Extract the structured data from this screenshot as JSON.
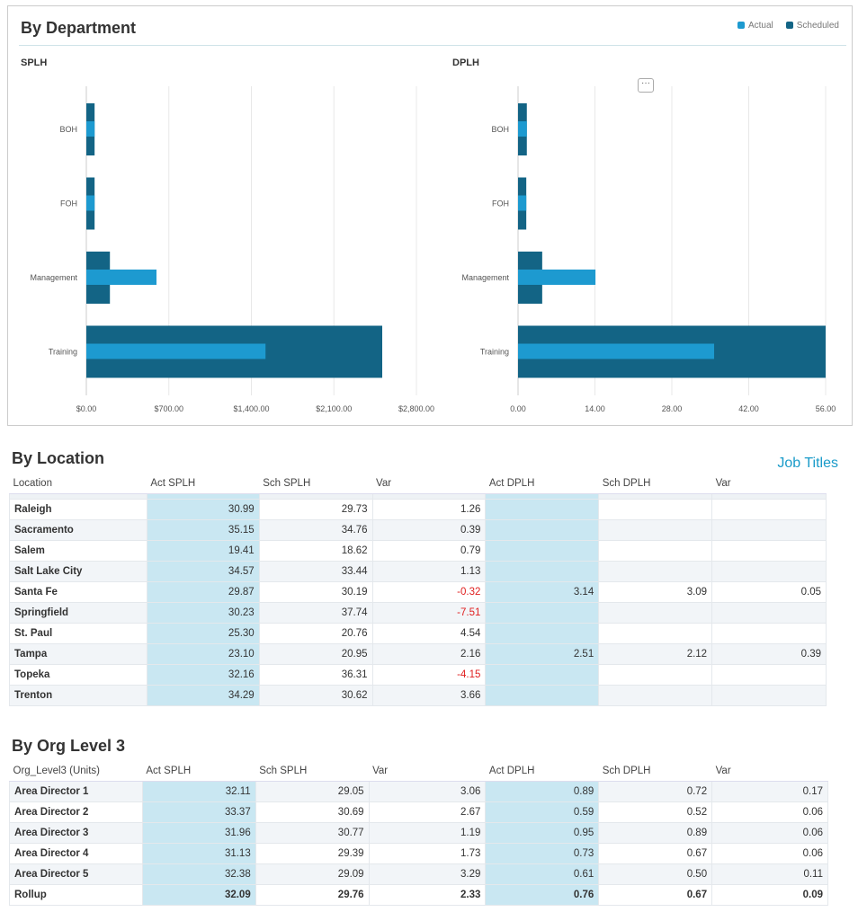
{
  "department": {
    "title": "By Department",
    "legend": [
      {
        "label": "Actual",
        "color": "#1d9ad0"
      },
      {
        "label": "Scheduled",
        "color": "#136485"
      }
    ],
    "more_label": "···"
  },
  "chart_data": [
    {
      "type": "bar",
      "orientation": "horizontal",
      "title": "SPLH",
      "categories": [
        "BOH",
        "FOH",
        "Management",
        "Training"
      ],
      "series": [
        {
          "name": "Scheduled",
          "values": [
            70,
            70,
            200,
            2510
          ]
        },
        {
          "name": "Actual",
          "values": [
            70,
            70,
            595,
            1520
          ]
        }
      ],
      "xlim": [
        0,
        2800
      ],
      "ticks": [
        "$0.00",
        "$700.00",
        "$1,400.00",
        "$2,100.00",
        "$2,800.00"
      ],
      "tick_values": [
        0,
        700,
        1400,
        2100,
        2800
      ],
      "grid": true
    },
    {
      "type": "bar",
      "orientation": "horizontal",
      "title": "DPLH",
      "categories": [
        "BOH",
        "FOH",
        "Management",
        "Training"
      ],
      "series": [
        {
          "name": "Scheduled",
          "values": [
            1.6,
            1.5,
            4.4,
            56
          ]
        },
        {
          "name": "Actual",
          "values": [
            1.6,
            1.5,
            14.1,
            35.7
          ]
        }
      ],
      "xlim": [
        0,
        56
      ],
      "ticks": [
        "0.00",
        "14.00",
        "28.00",
        "42.00",
        "56.00"
      ],
      "tick_values": [
        0,
        14,
        28,
        42,
        56
      ],
      "grid": true
    }
  ],
  "location": {
    "title": "By Location",
    "link": "Job Titles",
    "headers": [
      "Location",
      "Act SPLH",
      "Sch SPLH",
      "Var",
      "Act DPLH",
      "Sch DPLH",
      "Var"
    ],
    "rows": [
      [
        "Raleigh",
        "30.99",
        "29.73",
        "1.26",
        "",
        "",
        ""
      ],
      [
        "Sacramento",
        "35.15",
        "34.76",
        "0.39",
        "",
        "",
        ""
      ],
      [
        "Salem",
        "19.41",
        "18.62",
        "0.79",
        "",
        "",
        ""
      ],
      [
        "Salt Lake City",
        "34.57",
        "33.44",
        "1.13",
        "",
        "",
        ""
      ],
      [
        "Santa Fe",
        "29.87",
        "30.19",
        "-0.32",
        "3.14",
        "3.09",
        "0.05"
      ],
      [
        "Springfield",
        "30.23",
        "37.74",
        "-7.51",
        "",
        "",
        ""
      ],
      [
        "St. Paul",
        "25.30",
        "20.76",
        "4.54",
        "",
        "",
        ""
      ],
      [
        "Tampa",
        "23.10",
        "20.95",
        "2.16",
        "2.51",
        "2.12",
        "0.39"
      ],
      [
        "Topeka",
        "32.16",
        "36.31",
        "-4.15",
        "",
        "",
        ""
      ],
      [
        "Trenton",
        "34.29",
        "30.62",
        "3.66",
        "",
        "",
        ""
      ]
    ]
  },
  "org": {
    "title": "By Org Level 3",
    "headers": [
      "Org_Level3 (Units)",
      "Act SPLH",
      "Sch SPLH",
      "Var",
      "Act DPLH",
      "Sch DPLH",
      "Var"
    ],
    "rows": [
      [
        "Area Director 1",
        "32.11",
        "29.05",
        "3.06",
        "0.89",
        "0.72",
        "0.17"
      ],
      [
        "Area Director 2",
        "33.37",
        "30.69",
        "2.67",
        "0.59",
        "0.52",
        "0.06"
      ],
      [
        "Area Director 3",
        "31.96",
        "30.77",
        "1.19",
        "0.95",
        "0.89",
        "0.06"
      ],
      [
        "Area Director 4",
        "31.13",
        "29.39",
        "1.73",
        "0.73",
        "0.67",
        "0.06"
      ],
      [
        "Area Director 5",
        "32.38",
        "29.09",
        "3.29",
        "0.61",
        "0.50",
        "0.11"
      ],
      [
        "Rollup",
        "32.09",
        "29.76",
        "2.33",
        "0.76",
        "0.67",
        "0.09"
      ]
    ]
  }
}
